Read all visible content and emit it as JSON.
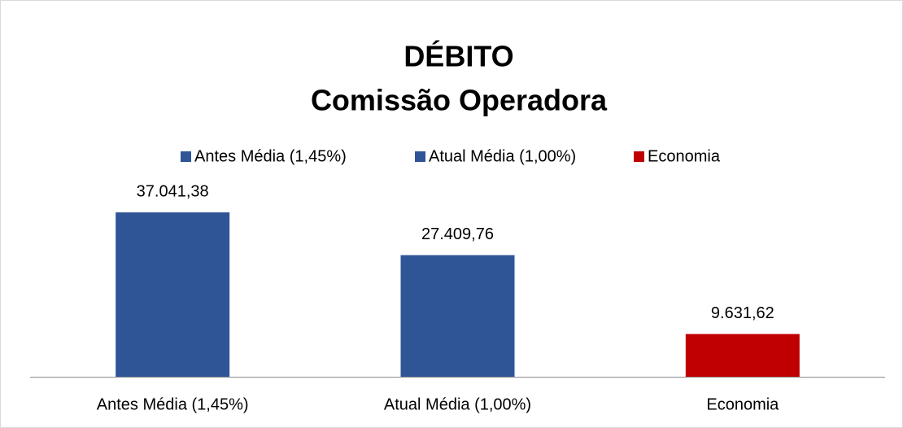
{
  "chart_data": {
    "type": "bar",
    "title": "DÉBITO",
    "subtitle": "Comissão Operadora",
    "categories": [
      "Antes Média (1,45%)",
      "Atual Média (1,00%)",
      "Economia"
    ],
    "values": [
      37041.38,
      27409.76,
      9631.62
    ],
    "value_labels": [
      "37.041,38",
      "27.409,76",
      "9.631,62"
    ],
    "colors": [
      "#2f5597",
      "#2f5597",
      "#c00000"
    ],
    "legend": "top"
  }
}
